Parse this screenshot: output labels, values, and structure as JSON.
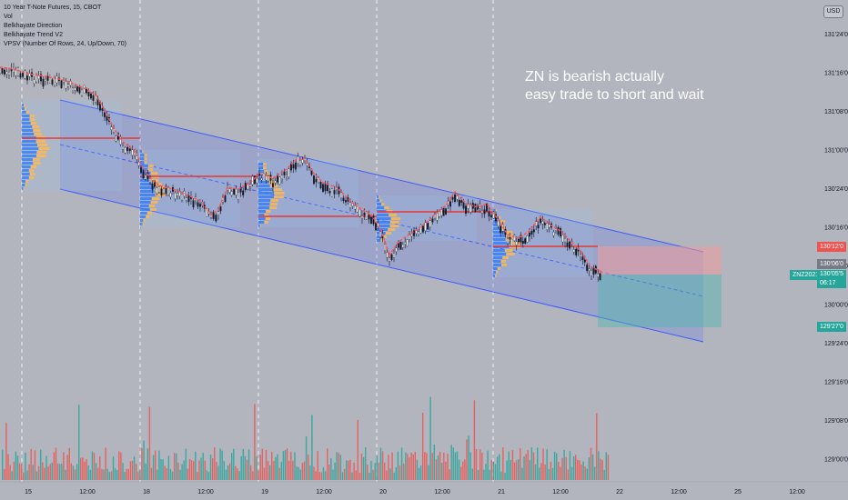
{
  "legend": {
    "title": "10 Year T-Note Futures, 15, CBOT",
    "vol": "Vol",
    "ind1": "Belkhayate Direction",
    "ind2": "Belkhayate Trend V2",
    "ind3": "VPSV (Number Of Rows, 24, Up/Down, 70)"
  },
  "note": {
    "line1": "ZN is bearish actually",
    "line2": "easy trade to short and wait"
  },
  "currency": "USD",
  "price_axis": [
    "131'24'0",
    "131'16'0",
    "131'08'0",
    "131'00'0",
    "130'24'0",
    "130'16'0",
    "130'08'0",
    "130'00'0",
    "129'24'0",
    "129'16'0",
    "129'08'0",
    "129'00'0"
  ],
  "time_axis": [
    "15",
    "12:00",
    "18",
    "12:00",
    "19",
    "12:00",
    "20",
    "12:00",
    "21",
    "12:00",
    "22",
    "12:00",
    "25",
    "12:00"
  ],
  "tags": {
    "stop": "130'12'0",
    "entry": "130'06'0",
    "symbol": "ZNZ2021",
    "last_price": "130'05'5",
    "countdown": "06:17",
    "target": "129'27'0"
  },
  "colors": {
    "up": "#26a69a",
    "down": "#ef5350",
    "channel": "#3d5afe",
    "poc": "#e53935"
  }
}
